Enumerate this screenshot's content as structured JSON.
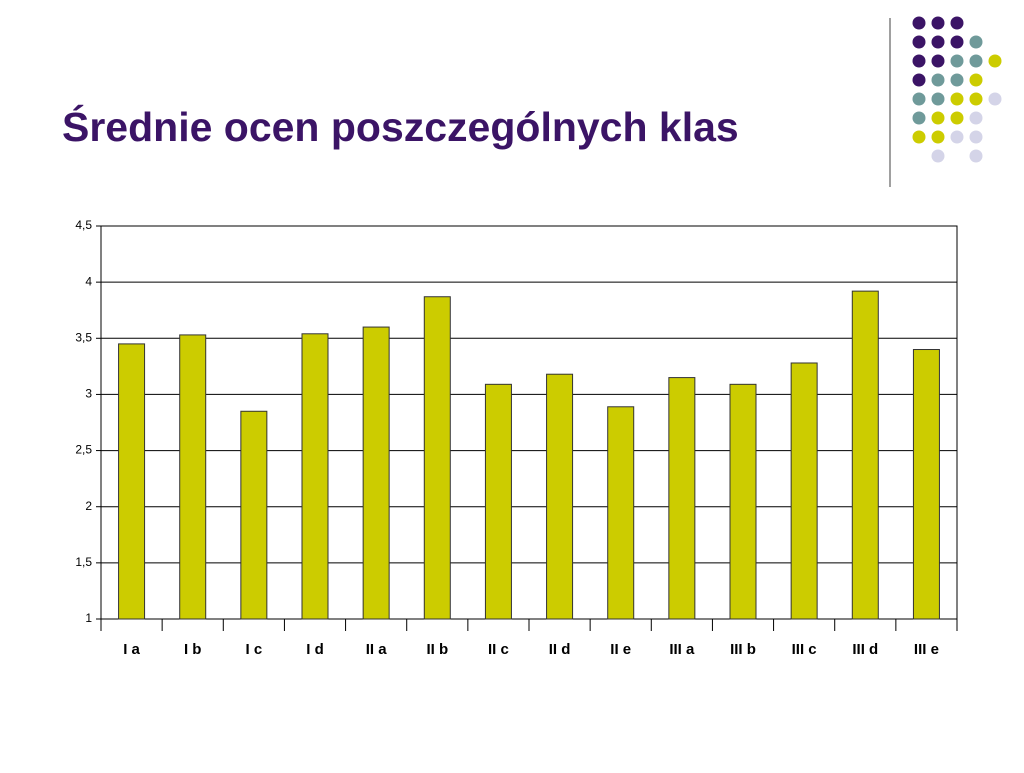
{
  "chart_data": {
    "type": "bar",
    "title": "Średnie ocen poszczególnych klas",
    "categories": [
      "I a",
      "I b",
      "I c",
      "I d",
      "II a",
      "II b",
      "II c",
      "II d",
      "II e",
      "III a",
      "III b",
      "III c",
      "III d",
      "III e"
    ],
    "values": [
      3.45,
      3.53,
      2.85,
      3.54,
      3.6,
      3.87,
      3.09,
      3.18,
      2.89,
      3.15,
      3.09,
      3.28,
      3.92,
      3.4
    ],
    "color": "#cccc00",
    "ylim": [
      1,
      4.5
    ],
    "yticks": [
      1,
      {
        "value": 1.5,
        "label": "1,5"
      },
      2,
      {
        "value": 2.5,
        "label": "2,5"
      },
      3,
      {
        "value": 3.5,
        "label": "3,5"
      },
      4,
      {
        "value": 4.5,
        "label": "4,5"
      }
    ],
    "grid": true
  }
}
